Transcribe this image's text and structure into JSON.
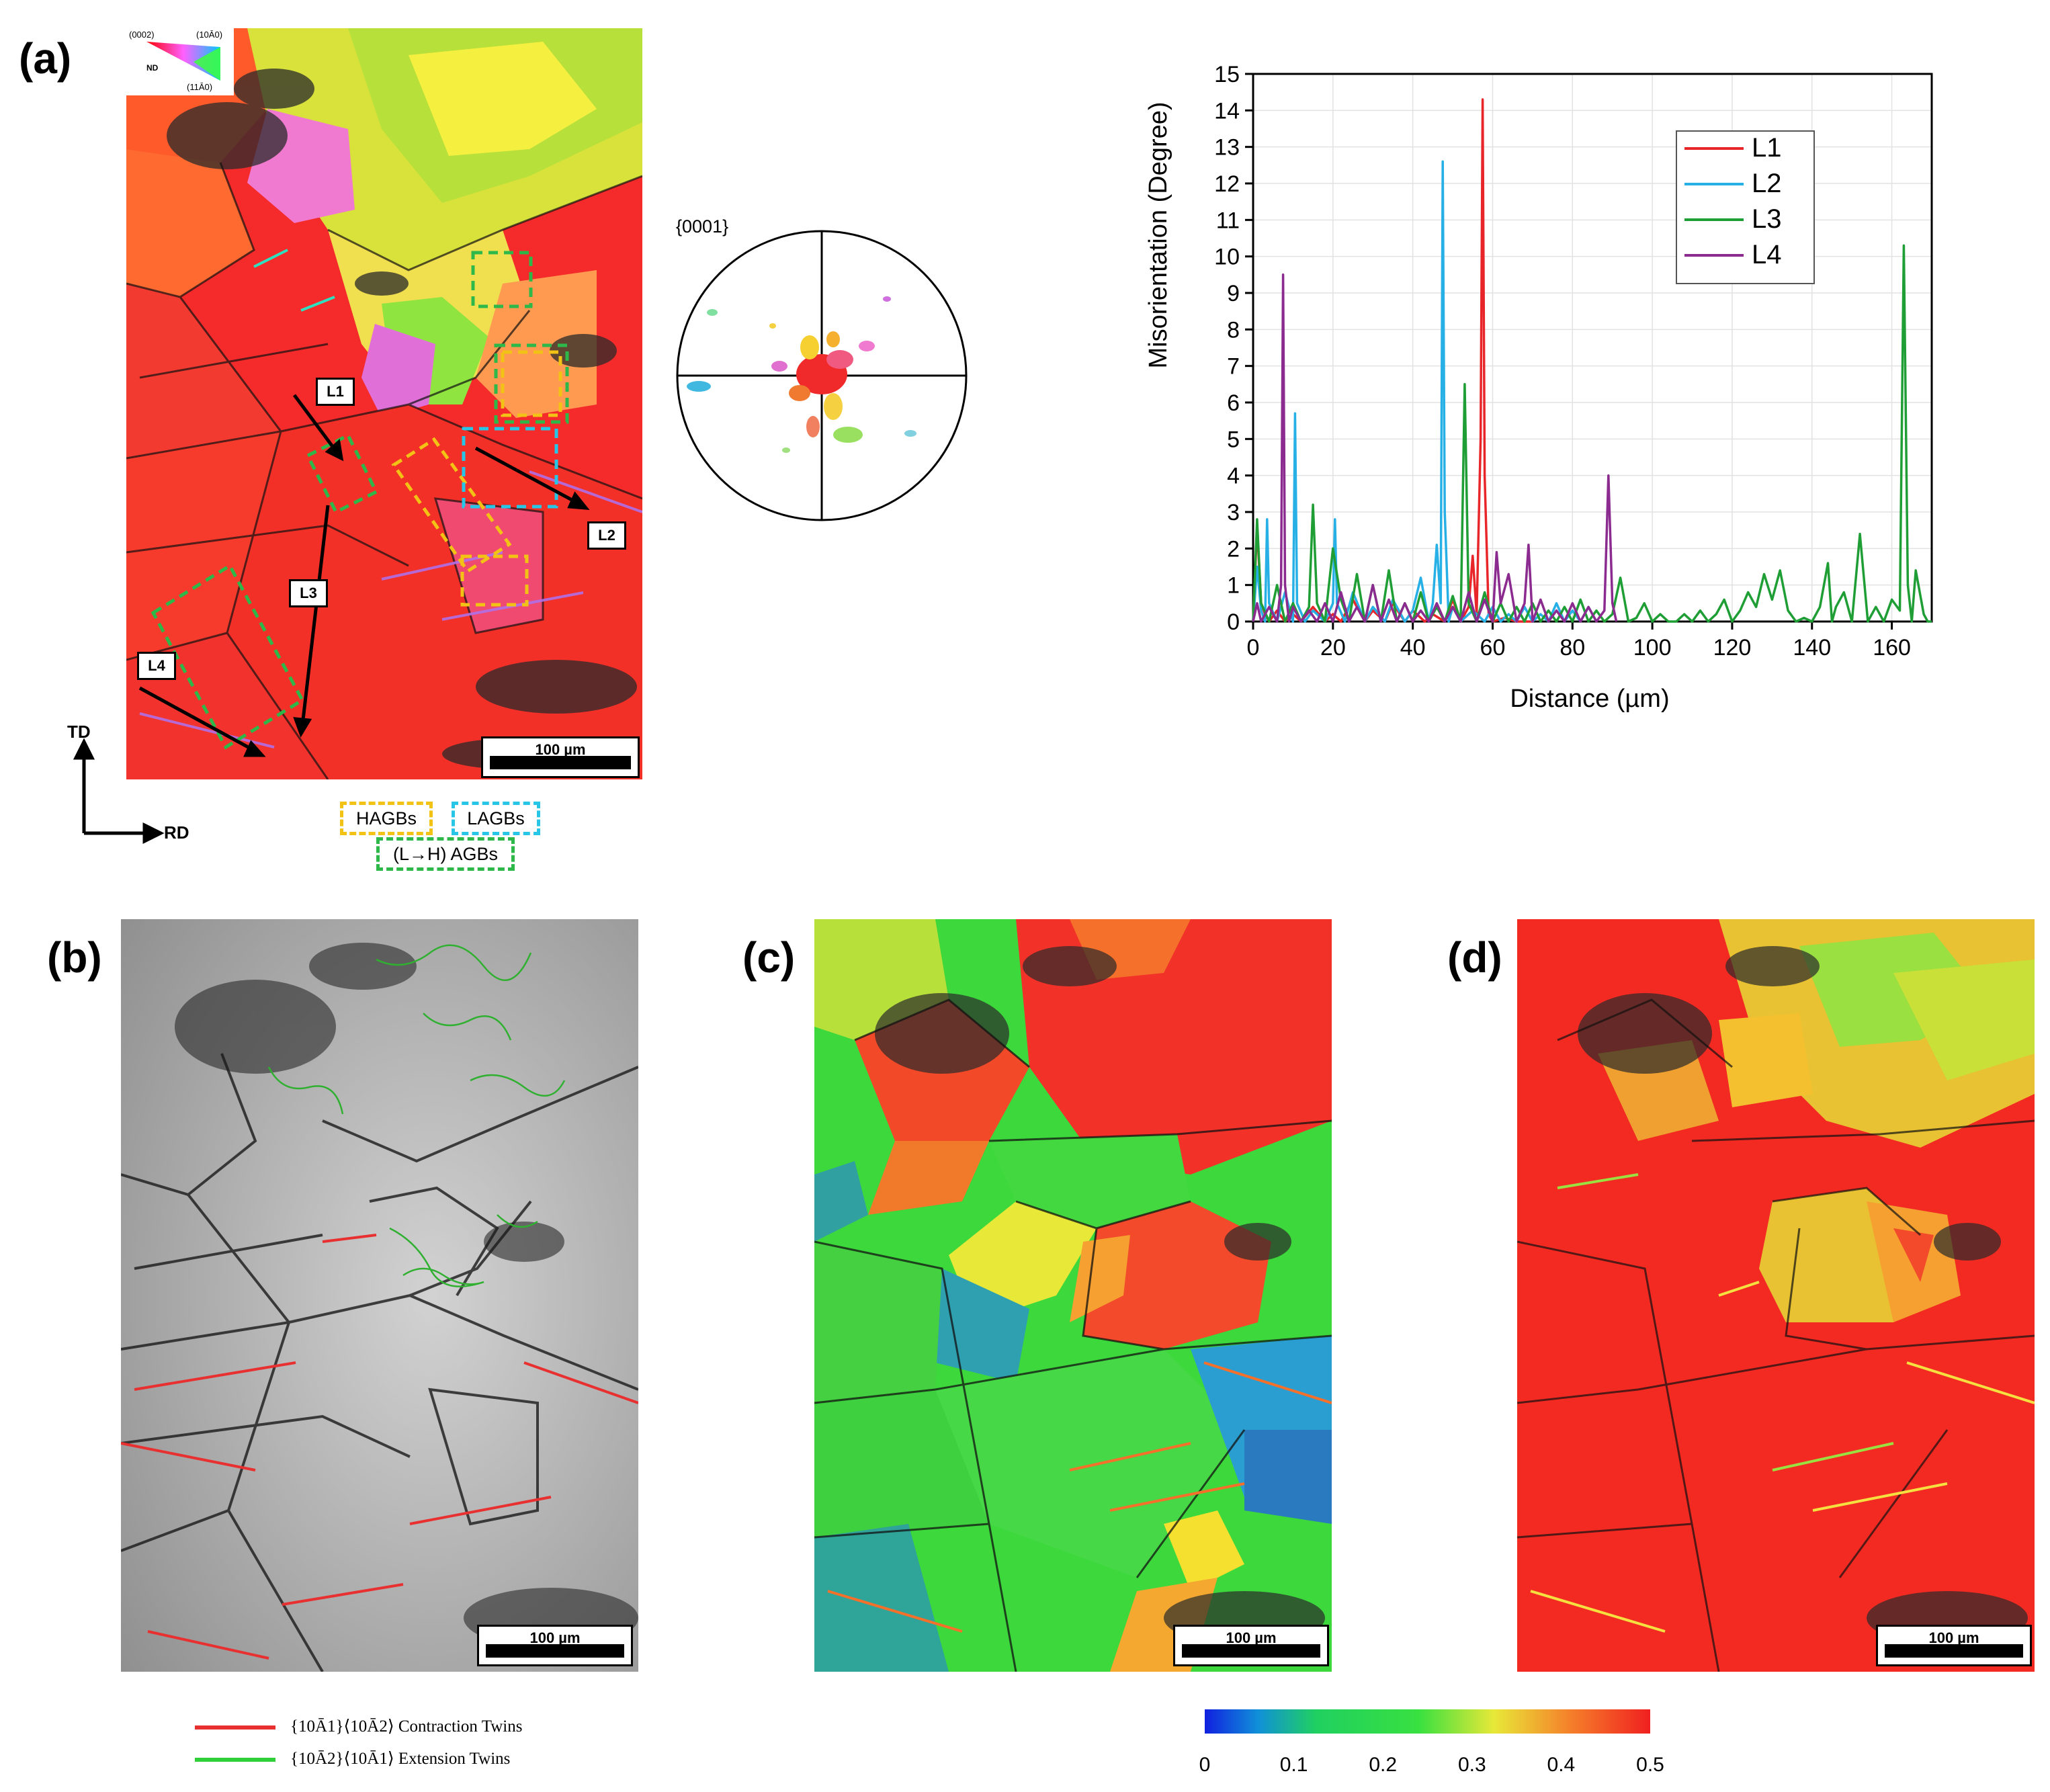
{
  "panels": {
    "a": "(a)",
    "b": "(b)",
    "c": "(c)",
    "d": "(d)"
  },
  "ipf_legend": {
    "top_left": "(0002)",
    "top_right": "(10Ā0)",
    "bottom": "(11Ā0)",
    "nd": "ND"
  },
  "line_tags": [
    "L1",
    "L2",
    "L3",
    "L4"
  ],
  "scale_label": "100 µm",
  "axes_triad": {
    "td": "TD",
    "rd": "RD"
  },
  "boundary_legend": {
    "hagbs": "HAGBs",
    "lagbs": "LAGBs",
    "lh_agbs": "(L→H) AGBs"
  },
  "pole_figure": {
    "label": "{0001}"
  },
  "twin_legend": {
    "contraction": "{10Ā1}⟨10Ā2⟩ Contraction Twins",
    "extension": "{10Ā2}⟨10Ā1⟩ Extension Twins"
  },
  "colors": {
    "L1": "#e8262a",
    "L2": "#27b0e6",
    "L3": "#1e9e35",
    "L4": "#8b2a8f",
    "hagbs": "#f2c314",
    "lagbs": "#27c6e6",
    "lh_agbs": "#2fb84a"
  },
  "colorbar": {
    "ticks": [
      "0",
      "0.1",
      "0.2",
      "0.3",
      "0.4",
      "0.5"
    ],
    "min": 0,
    "max": 0.5
  },
  "chart_data": {
    "type": "line",
    "title": "",
    "xlabel": "Distance (µm)",
    "ylabel": "Misorientation (Degree)",
    "xlim": [
      0,
      170
    ],
    "ylim": [
      0,
      15
    ],
    "xticks": [
      0,
      20,
      40,
      60,
      80,
      100,
      120,
      140,
      160
    ],
    "yticks": [
      0,
      1,
      2,
      3,
      4,
      5,
      6,
      7,
      8,
      9,
      10,
      11,
      12,
      13,
      14,
      15
    ],
    "legend_position": "top-right",
    "series": [
      {
        "name": "L1",
        "color": "#e8262a",
        "x": [
          0,
          1,
          2,
          3,
          4,
          6,
          8,
          10,
          12,
          15,
          18,
          20,
          22,
          25,
          28,
          30,
          33,
          35,
          38,
          40,
          43,
          45,
          48,
          50,
          52,
          54,
          55,
          56,
          57,
          57.5,
          58,
          59,
          60,
          63,
          66,
          70
        ],
        "y": [
          0,
          2.6,
          0.5,
          0.2,
          0,
          0.3,
          0,
          0.2,
          0,
          0.4,
          0,
          0.2,
          0,
          0.6,
          0,
          0.3,
          0,
          0.5,
          0,
          0.3,
          0,
          0.2,
          0,
          0.6,
          0,
          0.4,
          1.8,
          0.2,
          5,
          14.3,
          4,
          0.2,
          0,
          0.1,
          0,
          0
        ]
      },
      {
        "name": "L2",
        "color": "#27b0e6",
        "x": [
          0,
          1,
          2,
          3,
          3.5,
          4,
          6,
          8,
          10,
          10.5,
          11,
          13,
          15,
          18,
          20,
          20.5,
          21,
          23,
          25,
          28,
          30,
          33,
          35,
          38,
          40,
          42,
          44,
          45,
          46,
          47,
          47.5,
          48,
          49,
          50,
          52,
          55,
          58,
          60,
          62,
          64,
          66,
          68,
          70,
          72,
          74,
          76,
          78,
          80,
          82,
          84,
          86
        ],
        "y": [
          0,
          1.5,
          0.3,
          0,
          2.8,
          0.5,
          0,
          0.8,
          0,
          5.7,
          0.5,
          0,
          0.3,
          0,
          0.5,
          2.8,
          0.5,
          0,
          0.8,
          0,
          0.4,
          0,
          0.6,
          0,
          0.3,
          1.2,
          0,
          0.5,
          2.1,
          0.5,
          12.6,
          3,
          0,
          0.4,
          0,
          0.3,
          0,
          0.4,
          0,
          0.2,
          0,
          0.4,
          0,
          0.2,
          0,
          0.5,
          0,
          0.3,
          0,
          0.4,
          0
        ]
      },
      {
        "name": "L3",
        "color": "#1e9e35",
        "x": [
          0,
          1,
          2,
          4,
          6,
          8,
          10,
          12,
          14,
          15,
          16,
          18,
          20,
          22,
          24,
          26,
          28,
          30,
          32,
          34,
          36,
          38,
          40,
          42,
          44,
          46,
          48,
          50,
          52,
          53,
          54,
          56,
          58,
          60,
          62,
          64,
          66,
          68,
          70,
          72,
          74,
          76,
          78,
          80,
          82,
          84,
          86,
          88,
          90,
          92,
          94,
          96,
          98,
          100,
          102,
          104,
          106,
          108,
          110,
          112,
          114,
          116,
          118,
          120,
          122,
          124,
          126,
          128,
          130,
          132,
          134,
          136,
          138,
          140,
          142,
          144,
          145,
          146,
          148,
          150,
          152,
          154,
          156,
          158,
          160,
          162,
          163,
          164,
          165,
          166,
          168,
          169,
          170
        ],
        "y": [
          0,
          2.8,
          0.5,
          0,
          1,
          0,
          0.5,
          0,
          0.4,
          3.2,
          0.5,
          0,
          2,
          0.6,
          0,
          1.3,
          0,
          1,
          0,
          1.4,
          0,
          0.5,
          0,
          0.8,
          0,
          0.4,
          0,
          0.7,
          0,
          6.5,
          0.5,
          0,
          0.8,
          0,
          0.5,
          0,
          0.4,
          0,
          0.5,
          0,
          0.3,
          0,
          0.4,
          0,
          0.6,
          0,
          0.3,
          0,
          0.2,
          1.2,
          0,
          0.1,
          0.5,
          0,
          0.2,
          0,
          0,
          0.2,
          0,
          0.3,
          0,
          0.2,
          0.6,
          0,
          0.3,
          0.8,
          0.4,
          1.3,
          0.6,
          1.4,
          0.3,
          0,
          0.1,
          0,
          0.4,
          1.6,
          0,
          0.4,
          0.8,
          0,
          2.4,
          0,
          0.4,
          0,
          0.6,
          0.3,
          10.3,
          1,
          0,
          1.4,
          0.2,
          0,
          0
        ]
      },
      {
        "name": "L4",
        "color": "#8b2a8f",
        "x": [
          0,
          1,
          2,
          4,
          6,
          7,
          7.5,
          8,
          9,
          10,
          12,
          14,
          16,
          18,
          20,
          22,
          24,
          26,
          28,
          30,
          32,
          34,
          36,
          38,
          40,
          42,
          44,
          46,
          48,
          50,
          52,
          54,
          56,
          58,
          60,
          61,
          62,
          64,
          66,
          68,
          69,
          70,
          72,
          74,
          76,
          78,
          80,
          82,
          84,
          86,
          88,
          89,
          90,
          91
        ],
        "y": [
          0,
          0.5,
          0,
          0.4,
          0,
          1,
          9.5,
          1,
          0,
          0.4,
          0,
          0.3,
          0,
          0.5,
          0,
          0.8,
          0,
          0.4,
          0,
          1,
          0,
          0.6,
          0,
          0.5,
          0,
          0.3,
          0,
          0.5,
          0,
          0.4,
          0,
          0.8,
          0,
          0.6,
          0,
          1.9,
          0.5,
          1.3,
          0,
          0.5,
          2.1,
          0,
          0.6,
          0,
          0.3,
          0,
          0.5,
          0,
          0.4,
          0,
          0.3,
          4,
          0.5,
          0
        ]
      }
    ]
  }
}
